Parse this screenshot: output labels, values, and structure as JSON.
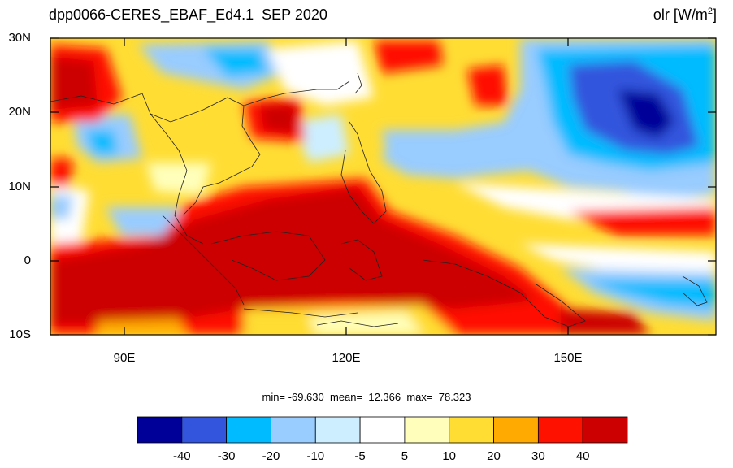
{
  "title_left": "dpp0066-CERES_EBAF_Ed4.1  SEP 2020",
  "title_right_var": "olr [W/m",
  "title_right_sup": "2",
  "title_right_close": "]",
  "lat_labels": [
    "30N",
    "20N",
    "10N",
    "0",
    "10S"
  ],
  "lon_labels": [
    "90E",
    "120E",
    "150E"
  ],
  "stats": {
    "min_label": "min=",
    "min": "-69.630",
    "mean_label": "mean=",
    "mean": "12.366",
    "max_label": "max=",
    "max": "78.323"
  },
  "colorbar": {
    "labels": [
      "-40",
      "-30",
      "-20",
      "-10",
      "-5",
      "5",
      "10",
      "20",
      "30",
      "40"
    ],
    "colors": [
      "#000099",
      "#3355dd",
      "#00bbff",
      "#99ccff",
      "#cceeff",
      "#ffffff",
      "#ffffbb",
      "#ffdd33",
      "#ffaa00",
      "#ff1100",
      "#cc0000"
    ]
  },
  "map_extent": {
    "lon_min": 80,
    "lon_max": 170,
    "lat_min": -10,
    "lat_max": 30
  }
}
